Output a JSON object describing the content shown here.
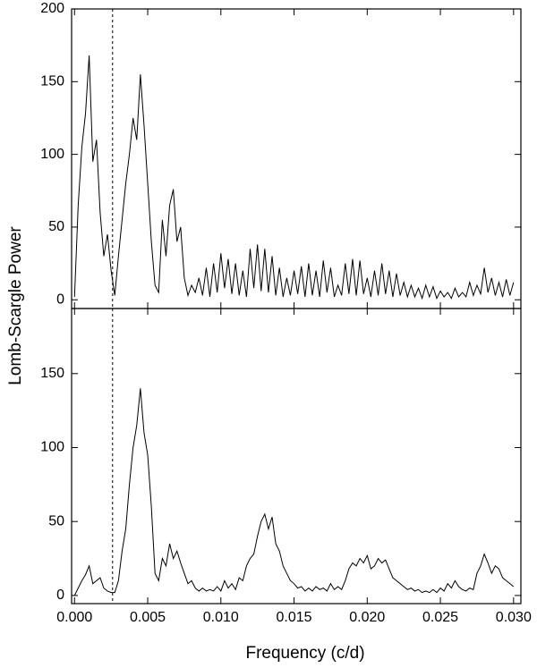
{
  "chart_data": [
    {
      "type": "line",
      "ylabel": "Lomb-Scargle Power",
      "color": "#000000",
      "xlim": [
        -0.0002,
        0.0305
      ],
      "xticks": [
        0,
        0.005,
        0.01,
        0.015,
        0.02,
        0.025,
        0.03
      ],
      "ylim": [
        -6,
        200
      ],
      "yticks": [
        0,
        50,
        100,
        150,
        200
      ],
      "vline": 0.0026,
      "x": [
        0,
        0.00025,
        0.0005,
        0.00075,
        0.001,
        0.00125,
        0.0015,
        0.00175,
        0.002,
        0.00225,
        0.0025,
        0.00275,
        0.003,
        0.00325,
        0.0035,
        0.00375,
        0.004,
        0.00425,
        0.0045,
        0.00475,
        0.005,
        0.00525,
        0.0055,
        0.00575,
        0.006,
        0.00625,
        0.0065,
        0.00675,
        0.007,
        0.00725,
        0.0075,
        0.00775,
        0.008,
        0.00825,
        0.0085,
        0.00875,
        0.009,
        0.00925,
        0.0095,
        0.00975,
        0.01,
        0.01025,
        0.0105,
        0.01075,
        0.011,
        0.01125,
        0.0115,
        0.01175,
        0.012,
        0.01225,
        0.0125,
        0.01275,
        0.013,
        0.01325,
        0.0135,
        0.01375,
        0.014,
        0.01425,
        0.0145,
        0.01475,
        0.015,
        0.01525,
        0.0155,
        0.01575,
        0.016,
        0.01625,
        0.0165,
        0.01675,
        0.017,
        0.01725,
        0.0175,
        0.01775,
        0.018,
        0.01825,
        0.0185,
        0.01875,
        0.019,
        0.01925,
        0.0195,
        0.01975,
        0.02,
        0.02025,
        0.0205,
        0.02075,
        0.021,
        0.02125,
        0.0215,
        0.02175,
        0.022,
        0.02225,
        0.0225,
        0.02275,
        0.023,
        0.02325,
        0.0235,
        0.02375,
        0.024,
        0.02425,
        0.0245,
        0.02475,
        0.025,
        0.02525,
        0.0255,
        0.02575,
        0.026,
        0.02625,
        0.0265,
        0.02675,
        0.027,
        0.02725,
        0.0275,
        0.02775,
        0.028,
        0.02825,
        0.0285,
        0.02875,
        0.029,
        0.02925,
        0.0295,
        0.02975,
        0.03
      ],
      "values": [
        2,
        65,
        105,
        128,
        168,
        95,
        110,
        60,
        30,
        45,
        20,
        3,
        30,
        55,
        80,
        100,
        125,
        110,
        155,
        120,
        80,
        40,
        10,
        5,
        55,
        30,
        65,
        76,
        40,
        50,
        15,
        3,
        10,
        5,
        15,
        3,
        22,
        2,
        25,
        5,
        32,
        8,
        28,
        4,
        25,
        3,
        20,
        2,
        35,
        8,
        38,
        6,
        35,
        5,
        30,
        3,
        22,
        2,
        15,
        3,
        20,
        4,
        23,
        2,
        25,
        3,
        20,
        2,
        27,
        5,
        22,
        2,
        10,
        3,
        25,
        4,
        28,
        3,
        27,
        4,
        15,
        2,
        20,
        3,
        25,
        4,
        20,
        2,
        18,
        3,
        12,
        2,
        10,
        2,
        8,
        1,
        10,
        2,
        9,
        1,
        6,
        2,
        5,
        1,
        8,
        2,
        5,
        2,
        12,
        3,
        10,
        4,
        22,
        5,
        15,
        3,
        12,
        2,
        14,
        3,
        12
      ]
    },
    {
      "type": "line",
      "xlabel": "Frequency (c/d)",
      "color": "#000000",
      "xlim": [
        -0.0002,
        0.0305
      ],
      "xticks": [
        {
          "value": 0,
          "label": "0.000"
        },
        {
          "value": 0.005,
          "label": "0.005"
        },
        {
          "value": 0.01,
          "label": "0.010"
        },
        {
          "value": 0.015,
          "label": "0.015"
        },
        {
          "value": 0.02,
          "label": "0.020"
        },
        {
          "value": 0.025,
          "label": "0.025"
        },
        {
          "value": 0.03,
          "label": "0.030"
        }
      ],
      "ylim": [
        -5.5,
        194
      ],
      "yticks": [
        0,
        50,
        100,
        150
      ],
      "vline": 0.0026,
      "x": [
        0,
        0.00025,
        0.0005,
        0.00075,
        0.001,
        0.00125,
        0.0015,
        0.00175,
        0.002,
        0.00225,
        0.0025,
        0.00275,
        0.003,
        0.00325,
        0.0035,
        0.00375,
        0.004,
        0.00425,
        0.0045,
        0.00475,
        0.005,
        0.00525,
        0.0055,
        0.00575,
        0.006,
        0.00625,
        0.0065,
        0.00675,
        0.007,
        0.00725,
        0.0075,
        0.00775,
        0.008,
        0.00825,
        0.0085,
        0.00875,
        0.009,
        0.00925,
        0.0095,
        0.00975,
        0.01,
        0.01025,
        0.0105,
        0.01075,
        0.011,
        0.01125,
        0.0115,
        0.01175,
        0.012,
        0.01225,
        0.0125,
        0.01275,
        0.013,
        0.01325,
        0.0135,
        0.01375,
        0.014,
        0.01425,
        0.0145,
        0.01475,
        0.015,
        0.01525,
        0.0155,
        0.01575,
        0.016,
        0.01625,
        0.0165,
        0.01675,
        0.017,
        0.01725,
        0.0175,
        0.01775,
        0.018,
        0.01825,
        0.0185,
        0.01875,
        0.019,
        0.01925,
        0.0195,
        0.01975,
        0.02,
        0.02025,
        0.0205,
        0.02075,
        0.021,
        0.02125,
        0.0215,
        0.02175,
        0.022,
        0.02225,
        0.0225,
        0.02275,
        0.023,
        0.02325,
        0.0235,
        0.02375,
        0.024,
        0.02425,
        0.0245,
        0.02475,
        0.025,
        0.02525,
        0.0255,
        0.02575,
        0.026,
        0.02625,
        0.0265,
        0.02675,
        0.027,
        0.02725,
        0.0275,
        0.02775,
        0.028,
        0.02825,
        0.0285,
        0.02875,
        0.029,
        0.02925,
        0.0295,
        0.02975,
        0.03
      ],
      "values": [
        0,
        5,
        10,
        14,
        20,
        8,
        10,
        12,
        5,
        3,
        2,
        2,
        10,
        30,
        45,
        75,
        100,
        115,
        140,
        110,
        95,
        60,
        15,
        10,
        25,
        20,
        35,
        25,
        30,
        22,
        15,
        8,
        10,
        5,
        3,
        5,
        3,
        4,
        3,
        6,
        3,
        10,
        5,
        8,
        4,
        12,
        10,
        20,
        25,
        28,
        40,
        50,
        55,
        45,
        53,
        35,
        30,
        20,
        15,
        10,
        8,
        5,
        6,
        3,
        5,
        3,
        6,
        4,
        5,
        3,
        8,
        4,
        6,
        4,
        10,
        18,
        22,
        20,
        25,
        22,
        27,
        18,
        20,
        25,
        22,
        24,
        18,
        12,
        10,
        8,
        6,
        4,
        5,
        3,
        4,
        2,
        3,
        2,
        4,
        2,
        5,
        3,
        8,
        5,
        10,
        6,
        4,
        3,
        5,
        4,
        15,
        20,
        28,
        22,
        15,
        20,
        18,
        12,
        10,
        8,
        6
      ]
    }
  ]
}
